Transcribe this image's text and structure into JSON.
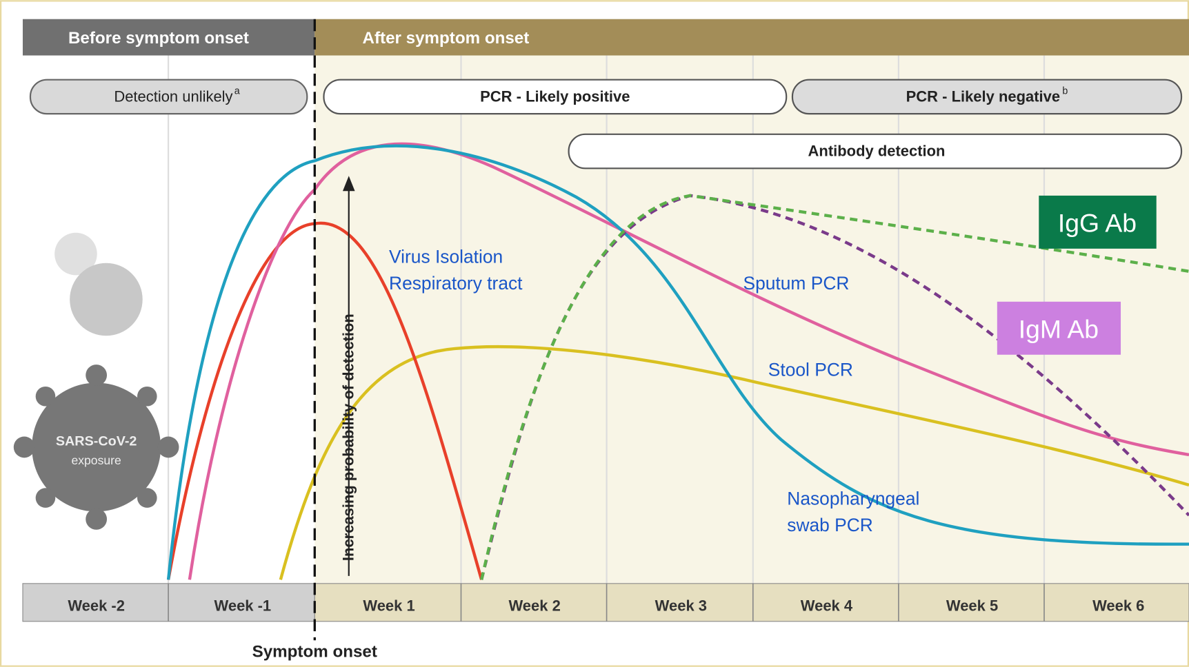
{
  "header": {
    "before": "Before symptom onset",
    "after": "After symptom onset"
  },
  "phases": {
    "detection_unlikely": "Detection unlikely",
    "detection_unlikely_note": "a",
    "pcr_positive": "PCR - Likely positive",
    "pcr_negative": "PCR - Likely negative",
    "pcr_negative_note": "b",
    "antibody": "Antibody detection"
  },
  "weeks": [
    "Week -2",
    "Week -1",
    "Week 1",
    "Week 2",
    "Week 3",
    "Week 4",
    "Week 5",
    "Week 6"
  ],
  "x_axis_label": "Symptom onset",
  "y_axis_label": "Increasing probability of detection",
  "exposure": [
    "SARS-CoV-2",
    "exposure"
  ],
  "curve_labels": {
    "virus_isolation": [
      "Virus Isolation",
      "Respiratory tract"
    ],
    "sputum": "Sputum PCR",
    "stool": "Stool PCR",
    "nasopharyngeal": [
      "Nasopharyngeal",
      "swab PCR"
    ]
  },
  "badges": {
    "igg": "IgG Ab",
    "igm": "IgM Ab"
  }
}
